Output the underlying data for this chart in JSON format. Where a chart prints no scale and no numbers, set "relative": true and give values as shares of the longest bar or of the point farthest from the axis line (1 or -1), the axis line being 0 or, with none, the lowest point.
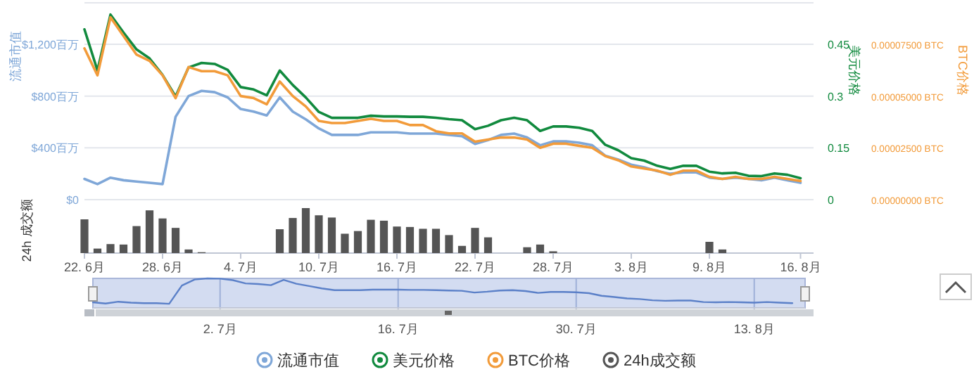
{
  "chart_data": [
    {
      "type": "line",
      "ylabel": "流通市值",
      "y2label": "美元价格",
      "y3label": "BTC价格",
      "xlim": [
        "--06-22",
        "--08-17"
      ],
      "ylim": [
        0,
        1520
      ],
      "yticks": [
        {
          "value": 0,
          "label": "$0"
        },
        {
          "value": 400,
          "label": "$400百万"
        },
        {
          "value": 800,
          "label": "$800百万"
        },
        {
          "value": 1200,
          "label": "$1,200百万"
        }
      ],
      "y2lim": [
        0,
        0.57
      ],
      "y2ticks": [
        0,
        0.15,
        0.3,
        0.45
      ],
      "y3lim": [
        0,
        9.5e-05
      ],
      "y3ticks": [
        {
          "value": 0,
          "label": "0.00000000 BTC"
        },
        {
          "value": 2.5e-05,
          "label": "0.00002500 BTC"
        },
        {
          "value": 5e-05,
          "label": "0.00005000 BTC"
        },
        {
          "value": 7.5e-05,
          "label": "0.00007500 BTC"
        }
      ],
      "grid": "y",
      "legend": "bottom",
      "tick_labels": "y",
      "x": [
        "--06-22",
        "--06-23",
        "--06-24",
        "--06-25",
        "--06-26",
        "--06-27",
        "--06-28",
        "--06-29",
        "--06-30",
        "--07-01",
        "--07-02",
        "--07-03",
        "--07-04",
        "--07-05",
        "--07-06",
        "--07-07",
        "--07-08",
        "--07-09",
        "--07-10",
        "--07-11",
        "--07-12",
        "--07-13",
        "--07-14",
        "--07-15",
        "--07-16",
        "--07-17",
        "--07-18",
        "--07-19",
        "--07-20",
        "--07-21",
        "--07-22",
        "--07-23",
        "--07-24",
        "--07-25",
        "--07-26",
        "--07-27",
        "--07-28",
        "--07-29",
        "--07-30",
        "--07-31",
        "--08-01",
        "--08-02",
        "--08-03",
        "--08-04",
        "--08-05",
        "--08-06",
        "--08-07",
        "--08-08",
        "--08-09",
        "--08-10",
        "--08-11",
        "--08-12",
        "--08-13",
        "--08-14",
        "--08-15",
        "--08-16"
      ],
      "series": [
        {
          "name": "流通市值",
          "color": "#7fa7d8",
          "values": [
            160,
            120,
            170,
            150,
            140,
            130,
            120,
            640,
            800,
            840,
            830,
            790,
            700,
            680,
            650,
            790,
            680,
            620,
            550,
            500,
            500,
            500,
            520,
            520,
            520,
            510,
            510,
            510,
            500,
            490,
            430,
            460,
            500,
            510,
            480,
            420,
            450,
            450,
            440,
            420,
            340,
            310,
            270,
            250,
            220,
            200,
            210,
            210,
            170,
            160,
            170,
            160,
            150,
            170,
            150,
            130
          ]
        },
        {
          "name": "美元价格",
          "color": "#118a3e",
          "axis": "y2",
          "values": [
            0.493,
            0.374,
            0.536,
            0.484,
            0.435,
            0.409,
            0.361,
            0.299,
            0.383,
            0.396,
            0.393,
            0.376,
            0.326,
            0.319,
            0.302,
            0.374,
            0.332,
            0.296,
            0.254,
            0.237,
            0.237,
            0.237,
            0.243,
            0.241,
            0.241,
            0.24,
            0.24,
            0.237,
            0.233,
            0.23,
            0.204,
            0.214,
            0.23,
            0.237,
            0.23,
            0.199,
            0.212,
            0.212,
            0.208,
            0.199,
            0.159,
            0.143,
            0.12,
            0.113,
            0.098,
            0.089,
            0.098,
            0.098,
            0.081,
            0.076,
            0.078,
            0.069,
            0.068,
            0.076,
            0.072,
            0.062
          ]
        },
        {
          "name": "BTC价格",
          "color": "#f29b3a",
          "axis": "y3",
          "values": [
            7.3e-05,
            6e-05,
            8.8e-05,
            7.9e-05,
            7e-05,
            6.7e-05,
            6e-05,
            4.9e-05,
            6.4e-05,
            6.2e-05,
            6.2e-05,
            6e-05,
            5e-05,
            4.9e-05,
            4.6e-05,
            5.7e-05,
            5e-05,
            4.5e-05,
            3.8e-05,
            3.7e-05,
            3.7e-05,
            3.8e-05,
            3.9e-05,
            3.8e-05,
            3.8e-05,
            3.6e-05,
            3.6e-05,
            3.3e-05,
            3.2e-05,
            3.2e-05,
            2.8e-05,
            2.9e-05,
            3e-05,
            3e-05,
            2.9e-05,
            2.5e-05,
            2.7e-05,
            2.7e-05,
            2.6e-05,
            2.5e-05,
            2.1e-05,
            1.9e-05,
            1.6e-05,
            1.5e-05,
            1.4e-05,
            1.2e-05,
            1.4e-05,
            1.4e-05,
            1.1e-05,
            1e-05,
            1.1e-05,
            1e-05,
            1e-05,
            1.1e-05,
            1e-05,
            9e-06
          ]
        }
      ]
    },
    {
      "type": "bar",
      "relative": true,
      "ylabel": "24h 成交额",
      "legend": "bottom",
      "xlim": [
        "--06-22",
        "--08-17"
      ],
      "xticks": [
        {
          "value": "--06-22",
          "label": "22. 6月"
        },
        {
          "value": "--06-28",
          "label": "28. 6月"
        },
        {
          "value": "--07-04",
          "label": "4. 7月"
        },
        {
          "value": "--07-10",
          "label": "10. 7月"
        },
        {
          "value": "--07-16",
          "label": "16. 7月"
        },
        {
          "value": "--07-22",
          "label": "22. 7月"
        },
        {
          "value": "--07-28",
          "label": "28. 7月"
        },
        {
          "value": "--08-03",
          "label": "3. 8月"
        },
        {
          "value": "--08-09",
          "label": "9. 8月"
        },
        {
          "value": "--08-16",
          "label": "16. 8月"
        }
      ],
      "x": [
        "--06-22",
        "--06-23",
        "--06-24",
        "--06-25",
        "--06-26",
        "--06-27",
        "--06-28",
        "--06-29",
        "--06-30",
        "--07-01",
        "--07-02",
        "--07-03",
        "--07-04",
        "--07-05",
        "--07-06",
        "--07-07",
        "--07-08",
        "--07-09",
        "--07-10",
        "--07-11",
        "--07-12",
        "--07-13",
        "--07-14",
        "--07-15",
        "--07-16",
        "--07-17",
        "--07-18",
        "--07-19",
        "--07-20",
        "--07-21",
        "--07-22",
        "--07-23",
        "--07-24",
        "--07-25",
        "--07-26",
        "--07-27",
        "--07-28",
        "--07-29",
        "--07-30",
        "--07-31",
        "--08-01",
        "--08-02",
        "--08-03",
        "--08-04",
        "--08-05",
        "--08-06",
        "--08-07",
        "--08-08",
        "--08-09",
        "--08-10",
        "--08-11",
        "--08-12",
        "--08-13",
        "--08-14",
        "--08-15",
        "--08-16"
      ],
      "series": [
        {
          "name": "24h成交额",
          "color": "#555555",
          "values": [
            0.75,
            0.1,
            0.2,
            0.19,
            0.6,
            0.95,
            0.77,
            0.56,
            0.08,
            0.02,
            0,
            0,
            0,
            0,
            0,
            0.53,
            0.78,
            1,
            0.84,
            0.79,
            0.43,
            0.49,
            0.74,
            0.72,
            0.59,
            0.58,
            0.54,
            0.54,
            0.4,
            0.16,
            0.56,
            0.35,
            0,
            0,
            0.13,
            0.19,
            0.04,
            0,
            0,
            0,
            0,
            0,
            0,
            0,
            0,
            0,
            0,
            0,
            0.25,
            0.08,
            0,
            0,
            0,
            0,
            0,
            0
          ]
        }
      ]
    },
    {
      "type": "line",
      "relative": true,
      "grid": "x",
      "xlim": [
        "--06-22",
        "--08-17"
      ],
      "xticks": [
        {
          "value": "--07-02",
          "label": "2. 7月"
        },
        {
          "value": "--07-16",
          "label": "16. 7月"
        },
        {
          "value": "--07-30",
          "label": "30. 7月"
        },
        {
          "value": "--08-13",
          "label": "13. 8月"
        }
      ],
      "x": [
        "--06-22",
        "--06-23",
        "--06-24",
        "--06-25",
        "--06-26",
        "--06-27",
        "--06-28",
        "--06-29",
        "--06-30",
        "--07-01",
        "--07-02",
        "--07-03",
        "--07-04",
        "--07-05",
        "--07-06",
        "--07-07",
        "--07-08",
        "--07-09",
        "--07-10",
        "--07-11",
        "--07-12",
        "--07-13",
        "--07-14",
        "--07-15",
        "--07-16",
        "--07-17",
        "--07-18",
        "--07-19",
        "--07-20",
        "--07-21",
        "--07-22",
        "--07-23",
        "--07-24",
        "--07-25",
        "--07-26",
        "--07-27",
        "--07-28",
        "--07-29",
        "--07-30",
        "--07-31",
        "--08-01",
        "--08-02",
        "--08-03",
        "--08-04",
        "--08-05",
        "--08-06",
        "--08-07",
        "--08-08",
        "--08-09",
        "--08-10",
        "--08-11",
        "--08-12",
        "--08-13",
        "--08-14",
        "--08-15",
        "--08-16"
      ],
      "series": [
        {
          "color": "#5b80c8",
          "values": [
            0.19,
            0.15,
            0.21,
            0.18,
            0.16,
            0.16,
            0.14,
            0.76,
            0.96,
            1,
            0.99,
            0.94,
            0.83,
            0.81,
            0.77,
            0.95,
            0.82,
            0.74,
            0.66,
            0.6,
            0.6,
            0.6,
            0.62,
            0.62,
            0.62,
            0.61,
            0.61,
            0.6,
            0.59,
            0.58,
            0.52,
            0.55,
            0.59,
            0.6,
            0.57,
            0.51,
            0.54,
            0.54,
            0.53,
            0.5,
            0.41,
            0.37,
            0.32,
            0.3,
            0.26,
            0.24,
            0.25,
            0.25,
            0.2,
            0.19,
            0.2,
            0.19,
            0.18,
            0.2,
            0.18,
            0.16
          ]
        }
      ]
    }
  ]
}
